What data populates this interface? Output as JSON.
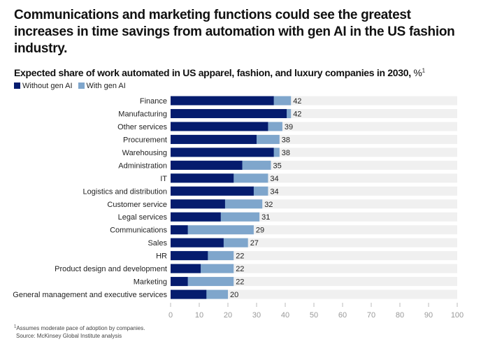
{
  "title": "Communications and marketing functions could see the greatest increases in time savings from automation with gen AI in the US fashion industry.",
  "subtitle": "Expected share of work automated in US apparel, fashion, and luxury companies in 2030,",
  "subtitle_unit": "%",
  "subtitle_sup": "1",
  "footnote": "Assumes moderate pace of adoption by companies.",
  "footnote_mark": "1",
  "source": "Source: McKinsey Global Institute analysis",
  "colors": {
    "without": "#051c6e",
    "with": "#7fa6cc",
    "track": "#f0f0f0"
  },
  "chart_data": {
    "type": "bar",
    "orientation": "horizontal",
    "stacked": true,
    "categories": [
      "Finance",
      "Manufacturing",
      "Other services",
      "Procurement",
      "Warehousing",
      "Administration",
      "IT",
      "Logistics and distribution",
      "Customer service",
      "Legal services",
      "Communications",
      "Sales",
      "HR",
      "Product design and development",
      "Marketing",
      "General management and executive services"
    ],
    "series": [
      {
        "name": "Without gen AI",
        "values": [
          36,
          40.5,
          34,
          30,
          36,
          25,
          22,
          29,
          19,
          17.5,
          6,
          18.5,
          13,
          10.5,
          6,
          12.5
        ]
      },
      {
        "name": "With gen AI",
        "totals": [
          42,
          42,
          39,
          38,
          38,
          35,
          34,
          34,
          32,
          31,
          29,
          27,
          22,
          22,
          22,
          20
        ]
      }
    ],
    "data_labels": [
      "42",
      "42",
      "39",
      "38",
      "38",
      "35",
      "34",
      "34",
      "32",
      "31",
      "29",
      "27",
      "22",
      "22",
      "22",
      "20"
    ],
    "xlim": [
      0,
      100
    ],
    "xticks": [
      "0",
      "10",
      "20",
      "30",
      "40",
      "50",
      "60",
      "70",
      "80",
      "90",
      "100"
    ],
    "legend": "top-left",
    "grid": false
  }
}
